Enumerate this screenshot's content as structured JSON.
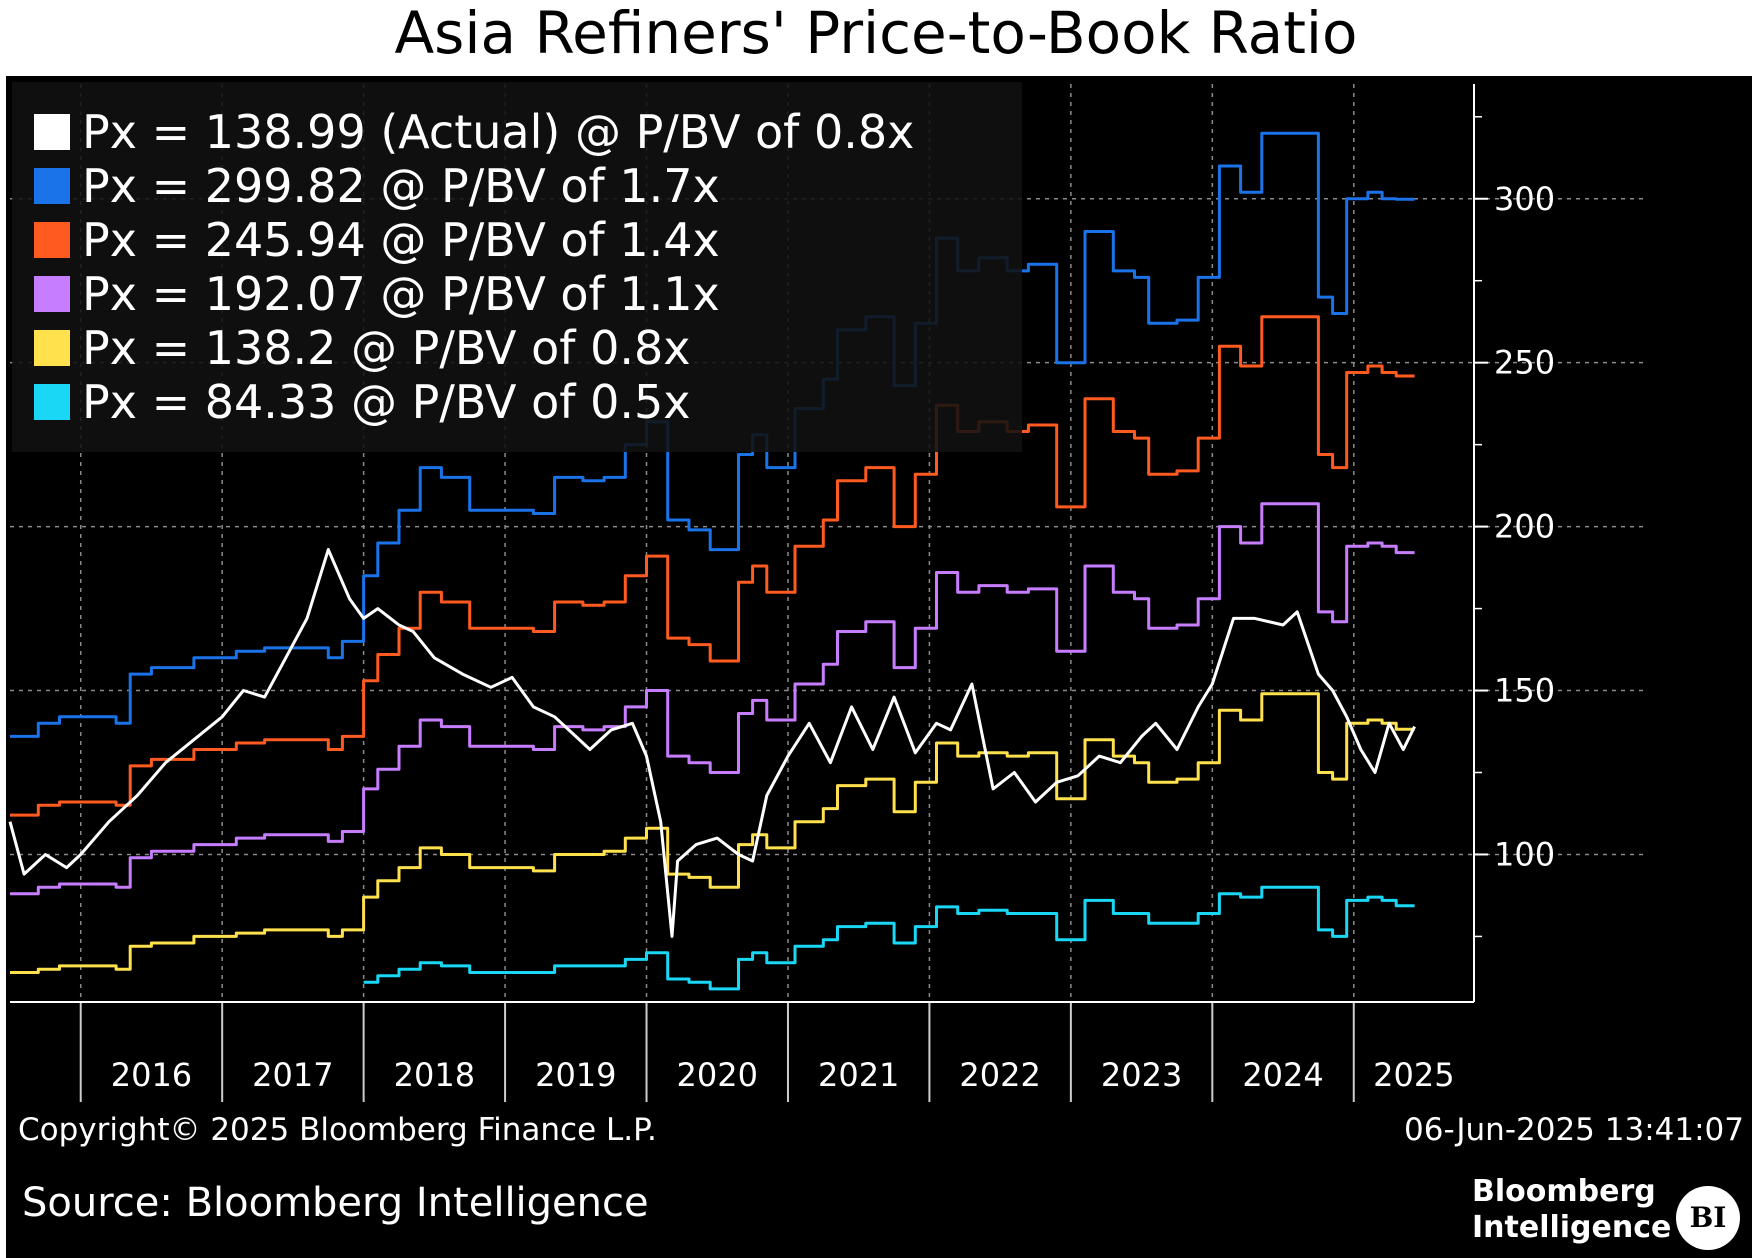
{
  "chart_data": {
    "type": "line",
    "title": "Asia Refiners' Price-to-Book Ratio",
    "yticks": [
      100,
      150,
      200,
      250,
      300
    ],
    "ylim": [
      55,
      335
    ],
    "xlim": [
      2015.5,
      2025.85
    ],
    "xticks": [
      "2016",
      "2017",
      "2018",
      "2019",
      "2020",
      "2021",
      "2022",
      "2023",
      "2024",
      "2025"
    ],
    "grid": true,
    "legend_position": "top-left",
    "series": [
      {
        "name": "Px = 138.99 (Actual) @ P/BV of 0.8x",
        "color": "#ffffff",
        "x": [
          2015.5,
          2015.6,
          2015.75,
          2015.9,
          2016.0,
          2016.2,
          2016.4,
          2016.6,
          2016.8,
          2017.0,
          2017.15,
          2017.3,
          2017.45,
          2017.6,
          2017.75,
          2017.9,
          2018.0,
          2018.1,
          2018.25,
          2018.35,
          2018.5,
          2018.7,
          2018.9,
          2019.05,
          2019.2,
          2019.35,
          2019.5,
          2019.6,
          2019.75,
          2019.9,
          2020.0,
          2020.1,
          2020.18,
          2020.22,
          2020.35,
          2020.5,
          2020.65,
          2020.75,
          2020.85,
          2021.0,
          2021.15,
          2021.3,
          2021.45,
          2021.6,
          2021.75,
          2021.9,
          2022.05,
          2022.15,
          2022.3,
          2022.45,
          2022.6,
          2022.75,
          2022.9,
          2023.05,
          2023.2,
          2023.35,
          2023.5,
          2023.6,
          2023.75,
          2023.9,
          2024.0,
          2024.15,
          2024.3,
          2024.5,
          2024.6,
          2024.75,
          2024.85,
          2024.95,
          2025.05,
          2025.15,
          2025.25,
          2025.35,
          2025.43
        ],
        "y": [
          110,
          94,
          100,
          96,
          100,
          110,
          118,
          128,
          135,
          142,
          150,
          148,
          160,
          172,
          193,
          178,
          172,
          175,
          170,
          168,
          160,
          155,
          151,
          154,
          145,
          142,
          136,
          132,
          138,
          140,
          130,
          110,
          75,
          98,
          103,
          105,
          100,
          98,
          118,
          130,
          140,
          128,
          145,
          132,
          148,
          131,
          140,
          138,
          152,
          120,
          125,
          116,
          122,
          124,
          130,
          128,
          136,
          140,
          132,
          145,
          152,
          172,
          172,
          170,
          174,
          155,
          150,
          142,
          132,
          125,
          140,
          132,
          138.99
        ]
      },
      {
        "name": "Px = 299.82 @ P/BV of 1.7x",
        "color": "#1a73e8",
        "step": true,
        "x": [
          2015.5,
          2015.7,
          2015.85,
          2016.25,
          2016.35,
          2016.5,
          2016.8,
          2017.1,
          2017.3,
          2017.5,
          2017.75,
          2017.85,
          2018.0,
          2018.1,
          2018.25,
          2018.4,
          2018.55,
          2018.75,
          2018.95,
          2019.2,
          2019.35,
          2019.55,
          2019.7,
          2019.85,
          2020.0,
          2020.15,
          2020.3,
          2020.45,
          2020.65,
          2020.75,
          2020.8,
          2020.85,
          2021.05,
          2021.25,
          2021.35,
          2021.55,
          2021.75,
          2021.9,
          2022.05,
          2022.2,
          2022.35,
          2022.55,
          2022.7,
          2022.9,
          2023.1,
          2023.3,
          2023.45,
          2023.55,
          2023.75,
          2023.9,
          2024.05,
          2024.2,
          2024.35,
          2024.55,
          2024.75,
          2024.85,
          2024.95,
          2025.1,
          2025.2,
          2025.3,
          2025.43
        ],
        "y": [
          136,
          140,
          142,
          140,
          155,
          157,
          160,
          162,
          163,
          163,
          160,
          165,
          185,
          195,
          205,
          218,
          215,
          205,
          205,
          204,
          215,
          214,
          215,
          225,
          232,
          202,
          199,
          193,
          222,
          228,
          228,
          218,
          236,
          245,
          260,
          264,
          243,
          262,
          288,
          278,
          282,
          278,
          280,
          250,
          290,
          278,
          276,
          262,
          263,
          276,
          310,
          302,
          320,
          320,
          270,
          265,
          300,
          302,
          300,
          299.82,
          299.82
        ]
      },
      {
        "name": "Px = 245.94 @ P/BV of 1.4x",
        "color": "#ff5a1f",
        "step": true,
        "x": [
          2015.5,
          2015.7,
          2015.85,
          2016.25,
          2016.35,
          2016.5,
          2016.8,
          2017.1,
          2017.3,
          2017.5,
          2017.75,
          2017.85,
          2018.0,
          2018.1,
          2018.25,
          2018.4,
          2018.55,
          2018.75,
          2018.95,
          2019.2,
          2019.35,
          2019.55,
          2019.7,
          2019.85,
          2020.0,
          2020.15,
          2020.3,
          2020.45,
          2020.65,
          2020.75,
          2020.8,
          2020.85,
          2021.05,
          2021.25,
          2021.35,
          2021.55,
          2021.75,
          2021.9,
          2022.05,
          2022.2,
          2022.35,
          2022.55,
          2022.7,
          2022.9,
          2023.1,
          2023.3,
          2023.45,
          2023.55,
          2023.75,
          2023.9,
          2024.05,
          2024.2,
          2024.35,
          2024.55,
          2024.75,
          2024.85,
          2024.95,
          2025.1,
          2025.2,
          2025.3,
          2025.43
        ],
        "y": [
          112,
          115,
          116,
          115,
          127,
          129,
          132,
          134,
          135,
          135,
          132,
          136,
          153,
          161,
          169,
          180,
          177,
          169,
          169,
          168,
          177,
          176,
          177,
          185,
          191,
          166,
          164,
          159,
          183,
          188,
          188,
          180,
          194,
          202,
          214,
          218,
          200,
          216,
          237,
          229,
          232,
          229,
          231,
          206,
          239,
          229,
          227,
          216,
          217,
          227,
          255,
          249,
          264,
          264,
          222,
          218,
          247,
          249,
          247,
          245.94,
          245.94
        ]
      },
      {
        "name": "Px = 192.07 @ P/BV of 1.1x",
        "color": "#c77dff",
        "step": true,
        "x": [
          2015.5,
          2015.7,
          2015.85,
          2016.25,
          2016.35,
          2016.5,
          2016.8,
          2017.1,
          2017.3,
          2017.5,
          2017.75,
          2017.85,
          2018.0,
          2018.1,
          2018.25,
          2018.4,
          2018.55,
          2018.75,
          2018.95,
          2019.2,
          2019.35,
          2019.55,
          2019.7,
          2019.85,
          2020.0,
          2020.15,
          2020.3,
          2020.45,
          2020.65,
          2020.75,
          2020.8,
          2020.85,
          2021.05,
          2021.25,
          2021.35,
          2021.55,
          2021.75,
          2021.9,
          2022.05,
          2022.2,
          2022.35,
          2022.55,
          2022.7,
          2022.9,
          2023.1,
          2023.3,
          2023.45,
          2023.55,
          2023.75,
          2023.9,
          2024.05,
          2024.2,
          2024.35,
          2024.55,
          2024.75,
          2024.85,
          2024.95,
          2025.1,
          2025.2,
          2025.3,
          2025.43
        ],
        "y": [
          88,
          90,
          91,
          90,
          99,
          101,
          103,
          105,
          106,
          106,
          104,
          107,
          120,
          126,
          133,
          141,
          139,
          133,
          133,
          132,
          139,
          138,
          139,
          145,
          150,
          130,
          128,
          125,
          143,
          147,
          147,
          141,
          152,
          158,
          168,
          171,
          157,
          169,
          186,
          180,
          182,
          180,
          181,
          162,
          188,
          180,
          178,
          169,
          170,
          178,
          200,
          195,
          207,
          207,
          174,
          171,
          194,
          195,
          194,
          192.07,
          192.07
        ]
      },
      {
        "name": "Px = 138.2 @ P/BV of 0.8x",
        "color": "#ffe14d",
        "step": true,
        "x": [
          2015.5,
          2015.7,
          2015.85,
          2016.25,
          2016.35,
          2016.5,
          2016.8,
          2017.1,
          2017.3,
          2017.5,
          2017.75,
          2017.85,
          2018.0,
          2018.1,
          2018.25,
          2018.4,
          2018.55,
          2018.75,
          2018.95,
          2019.2,
          2019.35,
          2019.55,
          2019.7,
          2019.85,
          2020.0,
          2020.15,
          2020.3,
          2020.45,
          2020.65,
          2020.75,
          2020.8,
          2020.85,
          2021.05,
          2021.25,
          2021.35,
          2021.55,
          2021.75,
          2021.9,
          2022.05,
          2022.2,
          2022.35,
          2022.55,
          2022.7,
          2022.9,
          2023.1,
          2023.3,
          2023.45,
          2023.55,
          2023.75,
          2023.9,
          2024.05,
          2024.2,
          2024.35,
          2024.55,
          2024.75,
          2024.85,
          2024.95,
          2025.1,
          2025.2,
          2025.3,
          2025.43
        ],
        "y": [
          64,
          65,
          66,
          65,
          72,
          73,
          75,
          76,
          77,
          77,
          75,
          77,
          87,
          92,
          96,
          102,
          100,
          96,
          96,
          95,
          100,
          100,
          101,
          105,
          108,
          94,
          93,
          90,
          103,
          106,
          106,
          102,
          110,
          114,
          121,
          123,
          113,
          122,
          134,
          130,
          131,
          130,
          131,
          117,
          135,
          130,
          128,
          122,
          123,
          128,
          144,
          141,
          149,
          149,
          125,
          123,
          140,
          141,
          140,
          138.2,
          138.2
        ]
      },
      {
        "name": "Px = 84.33 @ P/BV of 0.5x",
        "color": "#19d7f5",
        "step": true,
        "x": [
          2018.0,
          2018.1,
          2018.25,
          2018.4,
          2018.55,
          2018.75,
          2018.95,
          2019.2,
          2019.35,
          2019.55,
          2019.7,
          2019.85,
          2020.0,
          2020.15,
          2020.3,
          2020.45,
          2020.65,
          2020.75,
          2020.8,
          2020.85,
          2021.05,
          2021.25,
          2021.35,
          2021.55,
          2021.75,
          2021.9,
          2022.05,
          2022.2,
          2022.35,
          2022.55,
          2022.7,
          2022.9,
          2023.1,
          2023.3,
          2023.45,
          2023.55,
          2023.75,
          2023.9,
          2024.05,
          2024.2,
          2024.35,
          2024.55,
          2024.75,
          2024.85,
          2024.95,
          2025.1,
          2025.2,
          2025.3,
          2025.43
        ],
        "y": [
          61,
          63,
          65,
          67,
          66,
          64,
          64,
          64,
          66,
          66,
          66,
          68,
          70,
          62,
          61,
          59,
          68,
          70,
          70,
          67,
          72,
          74,
          78,
          79,
          73,
          78,
          84,
          82,
          83,
          82,
          82,
          74,
          86,
          82,
          82,
          79,
          79,
          82,
          88,
          87,
          90,
          90,
          77,
          75,
          86,
          87,
          86,
          84.33,
          84.33
        ]
      }
    ]
  },
  "footer": {
    "copyright": "Copyright© 2025 Bloomberg Finance L.P.",
    "timestamp": "06-Jun-2025 13:41:07",
    "source": "Source: Bloomberg Intelligence",
    "brand_line1": "Bloomberg",
    "brand_line2": "Intelligence",
    "logo_text": "BI"
  }
}
